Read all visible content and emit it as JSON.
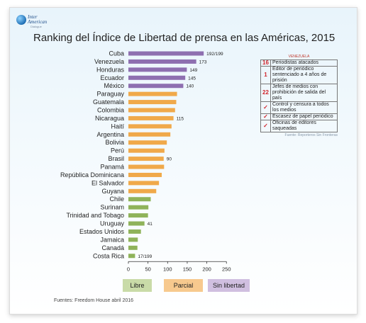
{
  "logo": {
    "line1": "Inter",
    "line2": "American",
    "line3": "Dialogue"
  },
  "chart_data": {
    "type": "bar",
    "orientation": "horizontal",
    "title": "Ranking del Índice de Libertad de prensa en las Américas, 2015",
    "categories": [
      "Cuba",
      "Venezuela",
      "Honduras",
      "Ecuador",
      "México",
      "Paraguay",
      "Guatemala",
      "Colombia",
      "Nicaragua",
      "Haití",
      "Argentina",
      "Bolivia",
      "Perú",
      "Brasil",
      "Panamá",
      "República Dominicana",
      "El Salvador",
      "Guyana",
      "Chile",
      "Surinam",
      "Trinidad and Tobago",
      "Uruguay",
      "Estados Unidos",
      "Jamaica",
      "Canadá",
      "Costa Rica"
    ],
    "values": [
      192,
      173,
      149,
      145,
      140,
      124,
      122,
      119,
      115,
      110,
      107,
      98,
      92,
      90,
      91,
      85,
      78,
      71,
      57,
      51,
      50,
      41,
      32,
      24,
      23,
      17
    ],
    "groups": [
      "Sin libertad",
      "Sin libertad",
      "Sin libertad",
      "Sin libertad",
      "Sin libertad",
      "Parcial",
      "Parcial",
      "Parcial",
      "Parcial",
      "Parcial",
      "Parcial",
      "Parcial",
      "Parcial",
      "Parcial",
      "Parcial",
      "Parcial",
      "Parcial",
      "Parcial",
      "Libre",
      "Libre",
      "Libre",
      "Libre",
      "Libre",
      "Libre",
      "Libre",
      "Libre"
    ],
    "data_labels": [
      {
        "category": "Cuba",
        "text": "192/199"
      },
      {
        "category": "Venezuela",
        "text": "173"
      },
      {
        "category": "Honduras",
        "text": "149"
      },
      {
        "category": "Ecuador",
        "text": "145"
      },
      {
        "category": "México",
        "text": "140"
      },
      {
        "category": "Nicaragua",
        "text": "115"
      },
      {
        "category": "Brasil",
        "text": "90"
      },
      {
        "category": "Uruguay",
        "text": "41"
      },
      {
        "category": "Costa Rica",
        "text": "17/199"
      }
    ],
    "x_ticks": [
      0,
      50,
      100,
      150,
      200,
      250
    ],
    "xlim": [
      0,
      250
    ],
    "grid": false,
    "legend": [
      {
        "name": "Libre",
        "color": "#8fb35a"
      },
      {
        "name": "Parcial",
        "color": "#f0a94a"
      },
      {
        "name": "Sin libertad",
        "color": "#8e6fb0"
      }
    ],
    "legend_position": "bottom"
  },
  "colors": {
    "Libre": "#8fb35a",
    "Parcial": "#f0a94a",
    "Sin libertad": "#8e6fb0",
    "legend_libre_bg": "#c9dba8",
    "legend_parcial_bg": "#f7c98e",
    "legend_sin_bg": "#d0bfe0"
  },
  "side_table": {
    "header": "VENEZUELA",
    "rows": [
      {
        "num": "16",
        "text": "Periodistas atacados"
      },
      {
        "num": "1",
        "text": "Editor de periódico sentenciado a 4 años de prisión"
      },
      {
        "num": "22",
        "text": "Jefes de medios con prohibición de salida del país"
      },
      {
        "num": "✓",
        "text": "Control y censura a todos los medios"
      },
      {
        "num": "✓",
        "text": "Escasez de papel periódico"
      },
      {
        "num": "✓",
        "text": "Oficinas de editores saqueadas"
      }
    ],
    "source": "Fuente: Reporteros Sin Fronteras"
  },
  "footer": "Fuentes: Freedom House abril 2016"
}
